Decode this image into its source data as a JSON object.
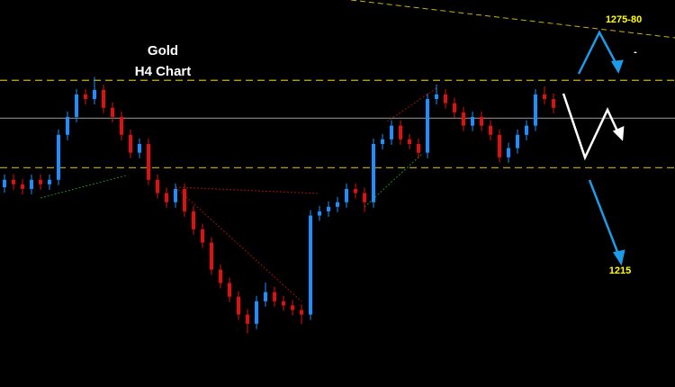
{
  "chart_data": {
    "type": "candlestick",
    "title": "Gold",
    "subtitle": "H4 Chart",
    "ylim": [
      1187,
      1280
    ],
    "up_color": "#1e8fff",
    "down_color": "#e01010",
    "open": [
      1235.0,
      1236.8,
      1235.7,
      1234.6,
      1236.8,
      1235.7,
      1236.8,
      1247.6,
      1251.9,
      1257.3,
      1256.2,
      1258.4,
      1254.1,
      1251.9,
      1247.6,
      1243.3,
      1245.4,
      1236.8,
      1233.6,
      1231.4,
      1234.6,
      1229.2,
      1224.9,
      1221.7,
      1215.2,
      1212.0,
      1208.7,
      1204.4,
      1202.2,
      1207.6,
      1209.8,
      1207.6,
      1206.6,
      1205.5,
      1204.4,
      1228.2,
      1229.2,
      1230.3,
      1231.4,
      1234.6,
      1233.6,
      1231.4,
      1245.4,
      1246.5,
      1249.8,
      1246.5,
      1245.4,
      1243.3,
      1256.2,
      1257.3,
      1255.2,
      1253.0,
      1249.8,
      1251.9,
      1249.8,
      1247.6,
      1242.2,
      1244.4,
      1247.6,
      1249.8,
      1257.3,
      1256.2
    ],
    "high": [
      1238.1,
      1238.1,
      1237.0,
      1238.1,
      1238.1,
      1238.1,
      1248.9,
      1253.2,
      1258.6,
      1258.6,
      1261.5,
      1259.7,
      1255.4,
      1253.2,
      1248.9,
      1246.7,
      1246.7,
      1238.1,
      1234.9,
      1235.9,
      1235.9,
      1230.5,
      1226.2,
      1223.0,
      1216.5,
      1213.3,
      1210.0,
      1205.7,
      1208.9,
      1212.1,
      1211.1,
      1208.9,
      1207.9,
      1206.8,
      1229.5,
      1230.5,
      1231.6,
      1232.7,
      1235.9,
      1235.9,
      1234.9,
      1246.7,
      1247.8,
      1251.1,
      1251.1,
      1247.8,
      1246.7,
      1257.5,
      1259.7,
      1258.6,
      1256.5,
      1254.3,
      1253.2,
      1253.2,
      1251.1,
      1248.9,
      1245.7,
      1248.9,
      1251.1,
      1258.6,
      1259.2,
      1257.5
    ],
    "low": [
      1233.7,
      1234.4,
      1233.3,
      1233.3,
      1234.4,
      1234.4,
      1235.5,
      1246.3,
      1250.6,
      1254.9,
      1254.9,
      1252.8,
      1250.6,
      1246.3,
      1242.0,
      1242.0,
      1235.5,
      1232.3,
      1230.1,
      1230.1,
      1227.9,
      1223.6,
      1220.4,
      1213.9,
      1210.7,
      1207.4,
      1203.1,
      1199.9,
      1200.9,
      1206.3,
      1206.3,
      1205.3,
      1204.2,
      1202.1,
      1203.1,
      1226.9,
      1227.9,
      1229.0,
      1230.1,
      1232.3,
      1229.1,
      1230.1,
      1244.1,
      1245.2,
      1245.2,
      1244.1,
      1242.0,
      1242.0,
      1254.9,
      1253.9,
      1251.7,
      1248.5,
      1248.5,
      1248.5,
      1246.3,
      1240.9,
      1240.9,
      1243.1,
      1246.3,
      1248.5,
      1254.9,
      1252.8
    ],
    "close": [
      1236.8,
      1235.7,
      1234.6,
      1236.8,
      1235.7,
      1236.8,
      1247.6,
      1251.9,
      1257.3,
      1256.2,
      1258.4,
      1254.1,
      1251.9,
      1247.6,
      1243.3,
      1245.4,
      1236.8,
      1233.6,
      1231.4,
      1234.6,
      1229.2,
      1224.9,
      1221.7,
      1215.2,
      1212.0,
      1208.7,
      1204.4,
      1202.2,
      1207.6,
      1209.8,
      1207.6,
      1206.6,
      1205.5,
      1204.4,
      1228.2,
      1229.2,
      1230.3,
      1231.4,
      1234.6,
      1233.6,
      1231.4,
      1245.4,
      1246.5,
      1249.8,
      1246.5,
      1245.4,
      1243.3,
      1256.2,
      1257.3,
      1255.2,
      1253.0,
      1249.8,
      1251.9,
      1249.8,
      1247.6,
      1242.2,
      1244.4,
      1247.6,
      1249.8,
      1257.3,
      1256.2,
      1254.1
    ],
    "levels": [
      {
        "value": 1260.7,
        "color": "#c8b400",
        "style": "dashed"
      },
      {
        "value": 1251.6,
        "color": "#8a8a8a",
        "style": "solid"
      },
      {
        "value": 1239.7,
        "color": "#c8b400",
        "style": "dashed"
      }
    ],
    "annotations": [
      "1275-80",
      "-",
      "1215"
    ]
  }
}
